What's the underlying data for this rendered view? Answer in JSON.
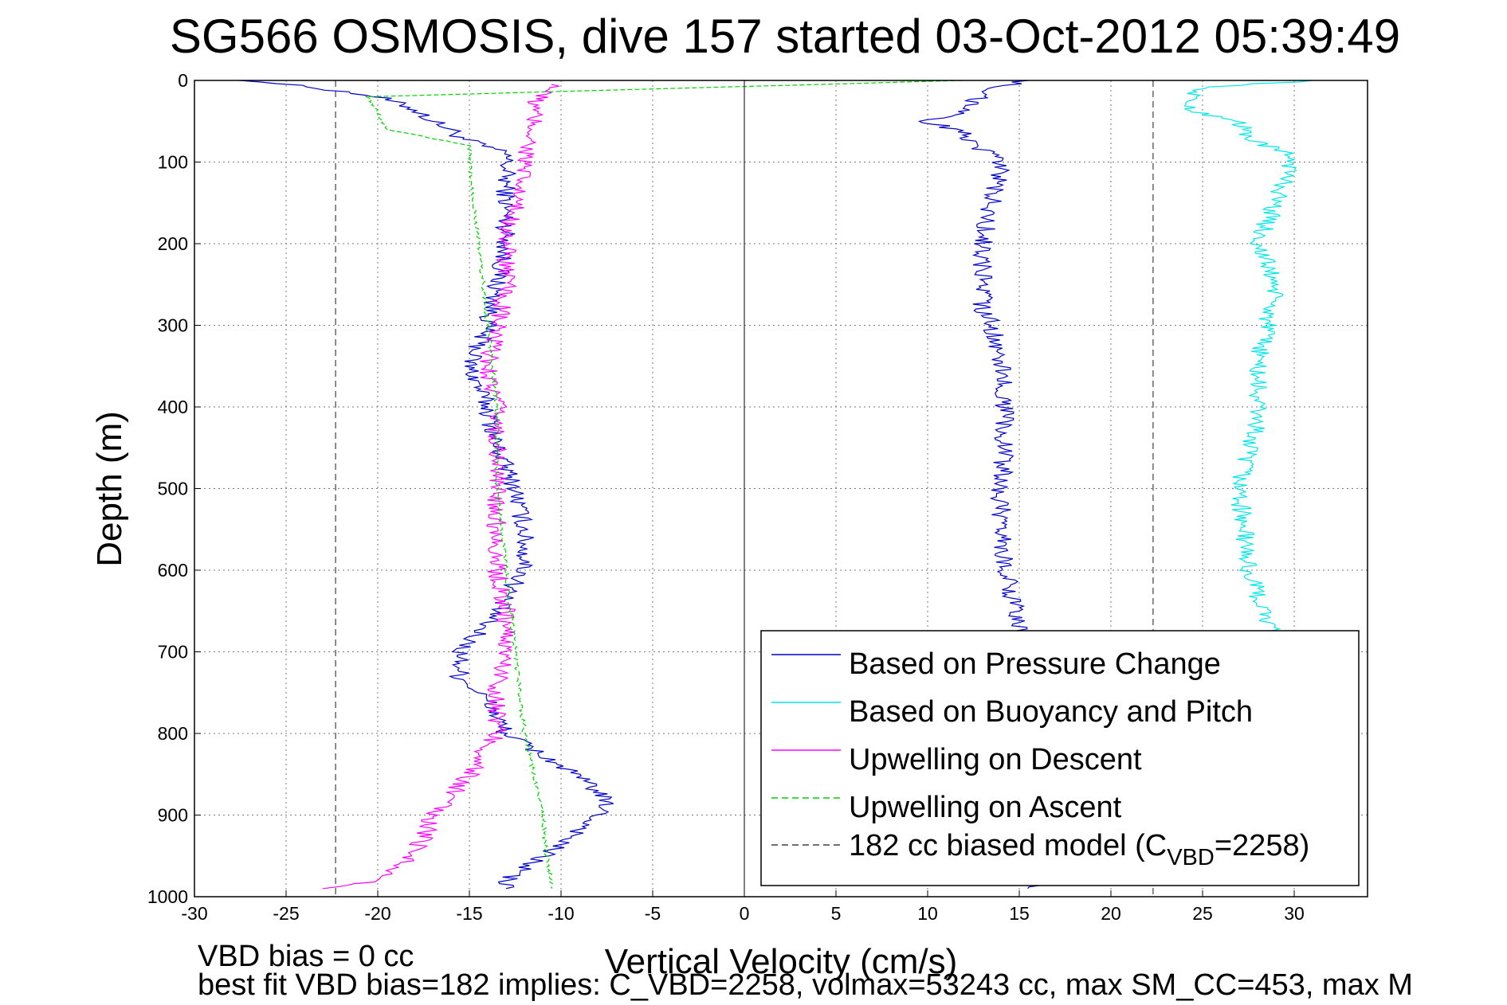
{
  "chart_data": {
    "type": "line",
    "title": "SG566 OSMOSIS, dive 157 started 03-Oct-2012 05:39:49",
    "xlabel": "Vertical Velocity (cm/s)",
    "ylabel": "Depth (m)",
    "xlim": [
      -30,
      34
    ],
    "ylim": [
      0,
      1000
    ],
    "y_reversed": true,
    "grid": true,
    "x_ticks": [
      -30,
      -25,
      -20,
      -15,
      -10,
      -5,
      0,
      5,
      10,
      15,
      20,
      25,
      30
    ],
    "y_ticks": [
      0,
      100,
      200,
      300,
      400,
      500,
      600,
      700,
      800,
      900,
      1000
    ],
    "legend_position": "bottom-right",
    "legend": {
      "pressure": "Based on Pressure Change",
      "buoyancy": "Based on Buoyancy and Pitch",
      "up_descent": "Upwelling on Descent",
      "up_ascent": "Upwelling on Ascent",
      "model_prefix": "182 cc biased model (C",
      "model_sub": "VBD",
      "model_suffix": "=2258)"
    },
    "colors": {
      "pressure": "#0000c8",
      "buoyancy": "#00e6e6",
      "up_descent": "#ff00ff",
      "up_ascent": "#00d000",
      "model": "#404040"
    },
    "model_lines_x": [
      -22.3,
      22.3
    ],
    "series": [
      {
        "key": "pressure_descent",
        "legend_key": "pressure",
        "depth": [
          0,
          10,
          20,
          35,
          50,
          60,
          70,
          90,
          120,
          150,
          200,
          250,
          300,
          350,
          400,
          450,
          500,
          550,
          600,
          650,
          700,
          730,
          760,
          800,
          840,
          870,
          890,
          920,
          950,
          980,
          990
        ],
        "velocity": [
          -27,
          -23,
          -20,
          -18,
          -17,
          -16,
          -15.5,
          -13,
          -13,
          -13,
          -13,
          -13.5,
          -14,
          -15,
          -14,
          -13.5,
          -12.5,
          -12,
          -12,
          -13.5,
          -15.5,
          -15.5,
          -14,
          -13,
          -10,
          -8,
          -7.5,
          -9,
          -11,
          -13,
          -13
        ]
      },
      {
        "key": "pressure_ascent",
        "legend_key": "pressure",
        "depth": [
          990,
          920,
          850,
          780,
          700,
          660,
          620,
          560,
          500,
          450,
          400,
          350,
          300,
          280,
          250,
          200,
          150,
          110,
          95,
          80,
          65,
          50,
          40,
          25,
          10,
          0
        ],
        "velocity": [
          16,
          15.8,
          15.5,
          15.2,
          15,
          15,
          14.5,
          14,
          14,
          14.2,
          14.2,
          14,
          13.5,
          13,
          13,
          13,
          13.5,
          14,
          14,
          12.5,
          12,
          10,
          11.5,
          12.5,
          13.5,
          15.5
        ]
      },
      {
        "key": "buoyancy_descent",
        "legend_key": "buoyancy",
        "depth": [
          0,
          8,
          20,
          35,
          50,
          70,
          95,
          150,
          200,
          250,
          300,
          350,
          400,
          420,
          450,
          500,
          600,
          660,
          700,
          750
        ],
        "velocity": [
          31.5,
          25,
          24.5,
          24,
          27,
          27.5,
          30,
          29,
          28,
          29,
          28.5,
          28,
          28,
          28,
          27.5,
          27,
          27.5,
          28.5,
          29,
          30
        ]
      },
      {
        "key": "up_descent",
        "legend_key": "up_descent",
        "depth": [
          5,
          15,
          30,
          60,
          100,
          150,
          200,
          250,
          300,
          350,
          400,
          450,
          500,
          550,
          600,
          650,
          700,
          750,
          800,
          850,
          900,
          950,
          980,
          990
        ],
        "velocity": [
          -10,
          -11,
          -11.5,
          -11.5,
          -12,
          -12.5,
          -13,
          -13,
          -13.5,
          -14,
          -13.5,
          -13.5,
          -13.5,
          -13.5,
          -13.5,
          -13,
          -13,
          -13.5,
          -13.5,
          -15,
          -17,
          -18,
          -20,
          -23
        ]
      },
      {
        "key": "up_ascent",
        "legend_key": "up_ascent",
        "depth": [
          0,
          20,
          40,
          60,
          80,
          100,
          200,
          300,
          400,
          500,
          600,
          700,
          800,
          850,
          900,
          950,
          990
        ],
        "velocity": [
          12,
          -20.5,
          -20,
          -19.5,
          -15,
          -15,
          -14.5,
          -14,
          -13.5,
          -13.5,
          -13,
          -12.5,
          -12,
          -11.5,
          -11,
          -10.8,
          -10.5
        ]
      }
    ]
  },
  "footer": {
    "line1": "VBD bias = 0 cc",
    "line2": "best fit VBD bias=182 implies: C_VBD=2258, volmax=53243 cc, max SM_CC=453, max M"
  }
}
